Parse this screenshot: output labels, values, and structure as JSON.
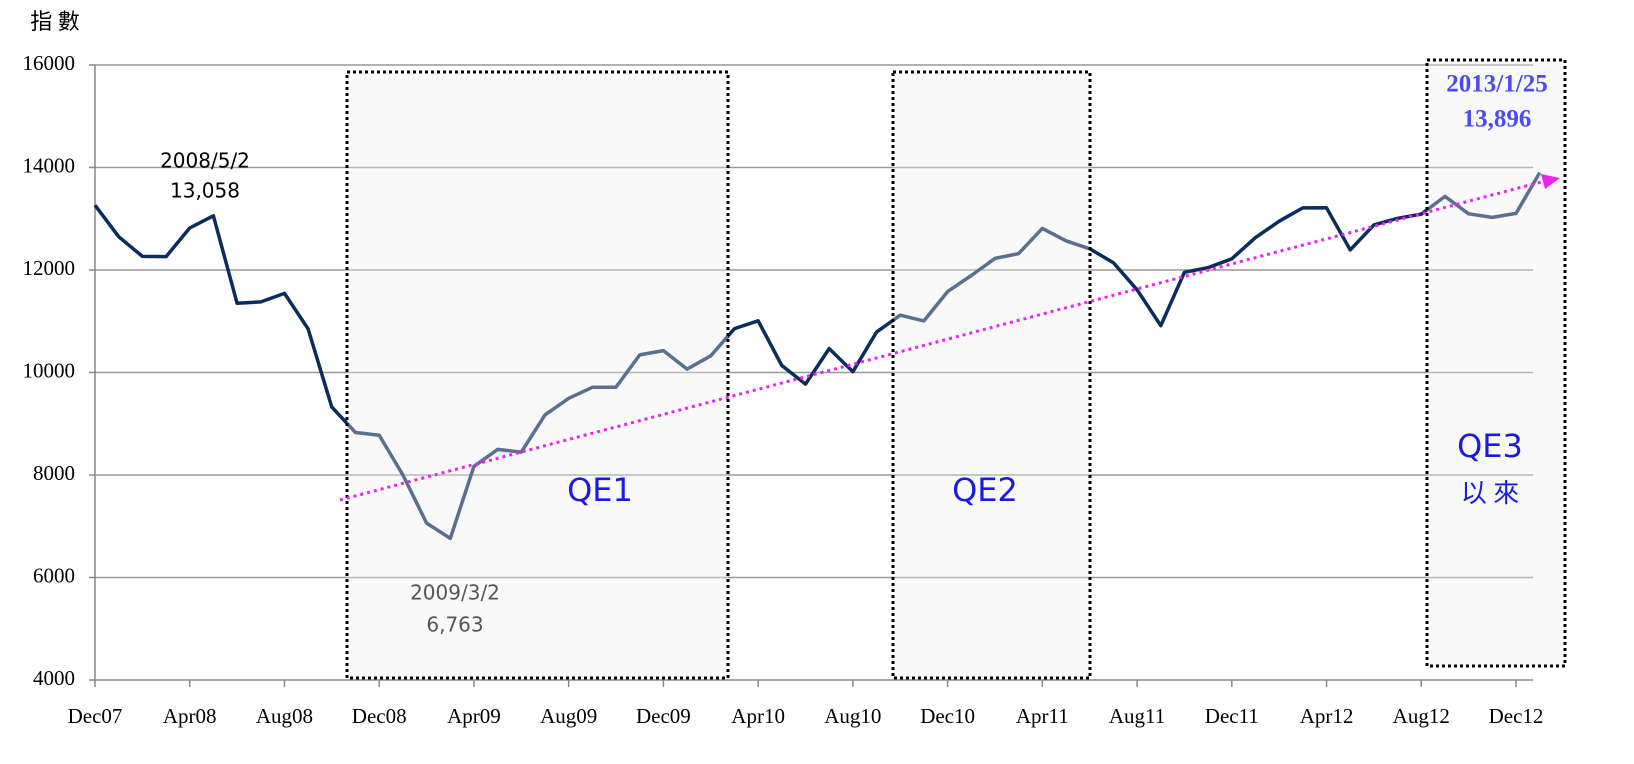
{
  "chart_data": {
    "type": "line",
    "y_axis_label": "指 數",
    "categories": [
      "Dec07",
      null,
      null,
      null,
      "Apr08",
      null,
      null,
      null,
      "Aug08",
      null,
      null,
      null,
      "Dec08",
      null,
      null,
      null,
      "Apr09",
      null,
      null,
      null,
      "Aug09",
      null,
      null,
      null,
      "Dec09",
      null,
      null,
      null,
      "Apr10",
      null,
      null,
      null,
      "Aug10",
      null,
      null,
      null,
      "Dec10",
      null,
      null,
      null,
      "Apr11",
      null,
      null,
      null,
      "Aug11",
      null,
      null,
      null,
      "Dec11",
      null,
      null,
      null,
      "Apr12",
      null,
      null,
      null,
      "Aug12",
      null,
      null,
      null,
      "Dec12",
      null
    ],
    "values": [
      13264,
      12650,
      12266,
      12262,
      12820,
      13058,
      11350,
      11378,
      11543,
      10850,
      9325,
      8829,
      8776,
      8000,
      7062,
      6763,
      8168,
      8500,
      8447,
      9172,
      9496,
      9712,
      9713,
      10344,
      10428,
      10067,
      10325,
      10857,
      11009,
      10137,
      9774,
      10466,
      10015,
      10788,
      11118,
      11006,
      11578,
      11892,
      12226,
      12320,
      12811,
      12570,
      12414,
      12143,
      11614,
      10913,
      11955,
      12046,
      12218,
      12633,
      12952,
      13212,
      13214,
      12393,
      12880,
      13009,
      13091,
      13437,
      13096,
      13026,
      13104,
      13896
    ],
    "color": "#0b2d5b",
    "ylim": [
      4000,
      16000
    ],
    "yticks": [
      4000,
      6000,
      8000,
      10000,
      12000,
      14000,
      16000
    ],
    "grid": true,
    "annotations": {
      "peak_date": "2008/5/2",
      "peak_value": "13,058",
      "low_date": "2009/3/2",
      "low_value": "6,763",
      "last_date": "2013/1/25",
      "last_value": "13,896",
      "qe1": "QE1",
      "qe2": "QE2",
      "qe3": "QE3",
      "qe3_since": "以 來"
    }
  }
}
